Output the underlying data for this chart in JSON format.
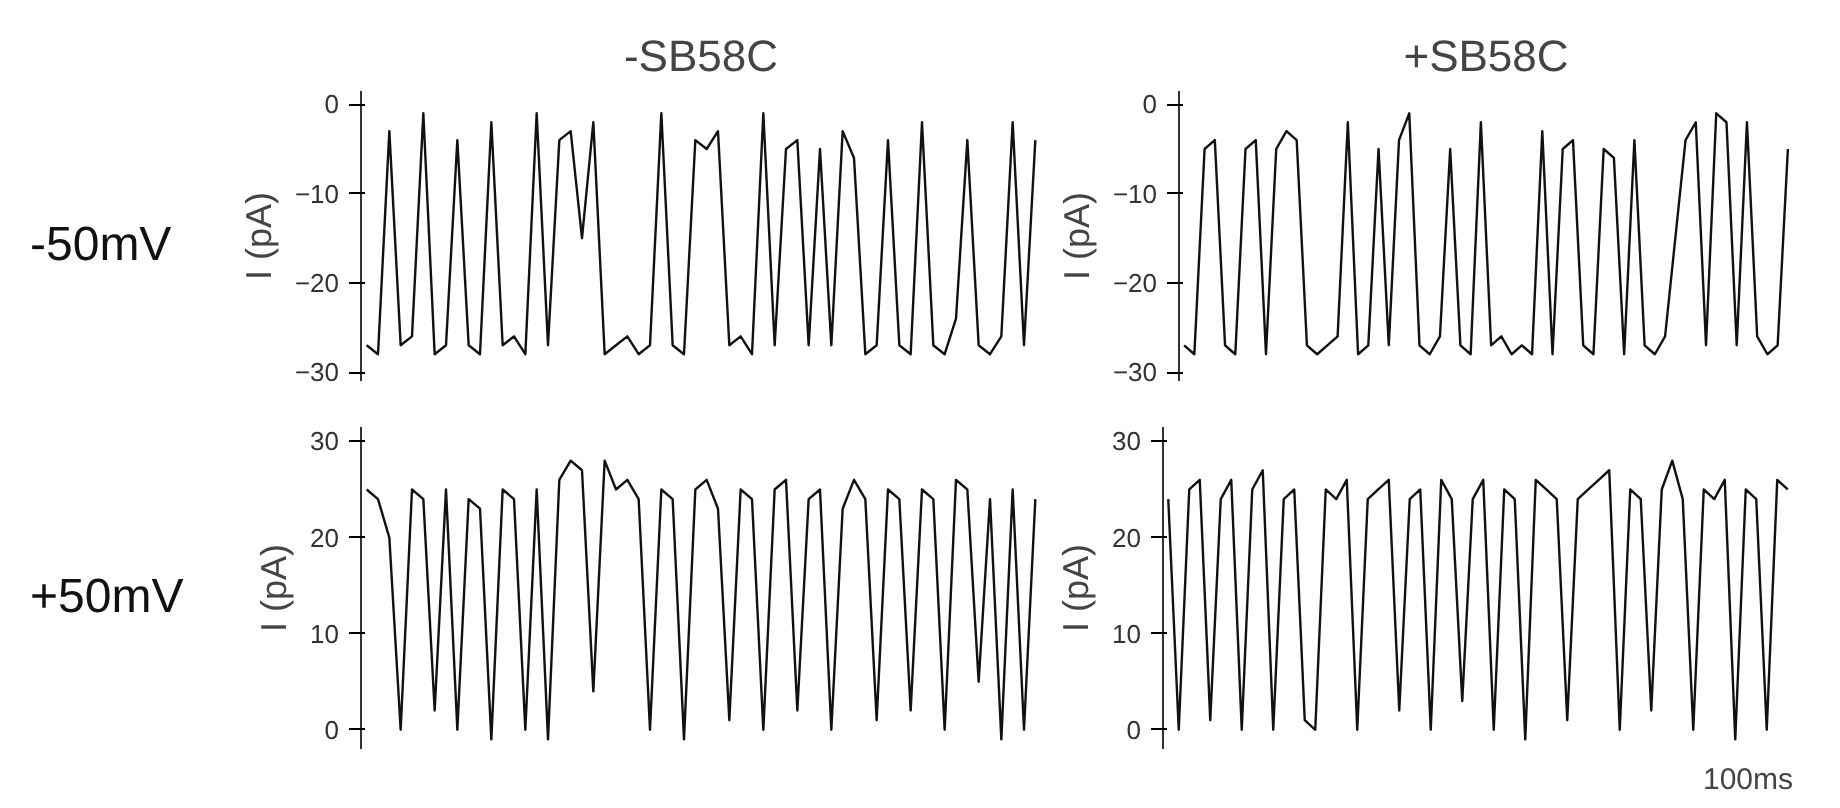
{
  "chart_data": [
    {
      "type": "line",
      "title": "-SB58C",
      "ylabel": "I (pA)",
      "annotations": [
        "-50mV"
      ],
      "tick_labels": "y",
      "color": "#111111",
      "ylim": [
        -31,
        1.5
      ],
      "yticks": [
        -30,
        -20,
        -10,
        0
      ],
      "categories": [
        null,
        null,
        null,
        null,
        null,
        null,
        null,
        null,
        null,
        null,
        null,
        null,
        null,
        null,
        null,
        null,
        null,
        null,
        null,
        null,
        null,
        null,
        null,
        null,
        null,
        null,
        null,
        null,
        null,
        null,
        null,
        null,
        null,
        null,
        null,
        null,
        null,
        null,
        null,
        null,
        null,
        null,
        null,
        null,
        null,
        null,
        null,
        null,
        null,
        null,
        null,
        null,
        null,
        null,
        null,
        null,
        null,
        null,
        null,
        null
      ],
      "values": [
        -27,
        -28,
        -3,
        -27,
        -26,
        -1,
        -28,
        -27,
        -4,
        -27,
        -28,
        -2,
        -27,
        -26,
        -28,
        -1,
        -27,
        -4,
        -3,
        -15,
        -2,
        -28,
        -27,
        -26,
        -28,
        -27,
        -1,
        -27,
        -28,
        -4,
        -5,
        -3,
        -27,
        -26,
        -28,
        -1,
        -27,
        -5,
        -4,
        -27,
        -5,
        -27,
        -3,
        -6,
        -28,
        -27,
        -4,
        -27,
        -28,
        -2,
        -27,
        -28,
        -24,
        -4,
        -27,
        -28,
        -26,
        -2,
        -27,
        -4
      ]
    },
    {
      "type": "line",
      "title": "+SB58C",
      "ylabel": "I (pA)",
      "tick_labels": "y",
      "color": "#111111",
      "ylim": [
        -31,
        1.5
      ],
      "yticks": [
        -30,
        -20,
        -10,
        0
      ],
      "categories": [
        null,
        null,
        null,
        null,
        null,
        null,
        null,
        null,
        null,
        null,
        null,
        null,
        null,
        null,
        null,
        null,
        null,
        null,
        null,
        null,
        null,
        null,
        null,
        null,
        null,
        null,
        null,
        null,
        null,
        null,
        null,
        null,
        null,
        null,
        null,
        null,
        null,
        null,
        null,
        null,
        null,
        null,
        null,
        null,
        null,
        null,
        null,
        null,
        null,
        null,
        null,
        null,
        null,
        null,
        null,
        null,
        null,
        null,
        null,
        null
      ],
      "values": [
        -27,
        -28,
        -5,
        -4,
        -27,
        -28,
        -5,
        -4,
        -28,
        -5,
        -3,
        -4,
        -27,
        -28,
        -27,
        -26,
        -2,
        -28,
        -27,
        -5,
        -27,
        -4,
        -1,
        -27,
        -28,
        -26,
        -5,
        -27,
        -28,
        -2,
        -27,
        -26,
        -28,
        -27,
        -28,
        -3,
        -28,
        -5,
        -4,
        -27,
        -28,
        -5,
        -6,
        -28,
        -4,
        -27,
        -28,
        -26,
        -15,
        -4,
        -2,
        -27,
        -1,
        -2,
        -27,
        -2,
        -26,
        -28,
        -27,
        -5
      ]
    },
    {
      "type": "line",
      "ylabel": "I (pA)",
      "annotations": [
        "+50mV"
      ],
      "tick_labels": "y",
      "color": "#111111",
      "ylim": [
        -2,
        31.5
      ],
      "yticks": [
        0,
        10,
        20,
        30
      ],
      "categories": [
        null,
        null,
        null,
        null,
        null,
        null,
        null,
        null,
        null,
        null,
        null,
        null,
        null,
        null,
        null,
        null,
        null,
        null,
        null,
        null,
        null,
        null,
        null,
        null,
        null,
        null,
        null,
        null,
        null,
        null,
        null,
        null,
        null,
        null,
        null,
        null,
        null,
        null,
        null,
        null,
        null,
        null,
        null,
        null,
        null,
        null,
        null,
        null,
        null,
        null,
        null,
        null,
        null,
        null,
        null,
        null,
        null,
        null,
        null,
        null
      ],
      "values": [
        25,
        24,
        20,
        0,
        25,
        24,
        2,
        25,
        0,
        24,
        23,
        -1,
        25,
        24,
        0,
        25,
        -1,
        26,
        28,
        27,
        4,
        28,
        25,
        26,
        24,
        0,
        25,
        24,
        -1,
        25,
        26,
        23,
        1,
        25,
        24,
        0,
        25,
        26,
        2,
        24,
        25,
        0,
        23,
        26,
        24,
        1,
        25,
        24,
        2,
        25,
        24,
        0,
        26,
        25,
        5,
        24,
        -1,
        25,
        0,
        24
      ]
    },
    {
      "type": "line",
      "ylabel": "I (pA)",
      "annotations": [
        "100ms"
      ],
      "tick_labels": "y",
      "color": "#111111",
      "ylim": [
        -2,
        31.5
      ],
      "yticks": [
        0,
        10,
        20,
        30
      ],
      "categories": [
        null,
        null,
        null,
        null,
        null,
        null,
        null,
        null,
        null,
        null,
        null,
        null,
        null,
        null,
        null,
        null,
        null,
        null,
        null,
        null,
        null,
        null,
        null,
        null,
        null,
        null,
        null,
        null,
        null,
        null,
        null,
        null,
        null,
        null,
        null,
        null,
        null,
        null,
        null,
        null,
        null,
        null,
        null,
        null,
        null,
        null,
        null,
        null,
        null,
        null,
        null,
        null,
        null,
        null,
        null,
        null,
        null,
        null,
        null,
        null
      ],
      "values": [
        24,
        0,
        25,
        26,
        1,
        24,
        26,
        0,
        25,
        27,
        0,
        24,
        25,
        1,
        0,
        25,
        24,
        26,
        0,
        24,
        25,
        26,
        2,
        24,
        25,
        0,
        26,
        24,
        3,
        24,
        26,
        0,
        25,
        24,
        -1,
        26,
        25,
        24,
        1,
        24,
        25,
        26,
        27,
        0,
        25,
        24,
        2,
        25,
        28,
        24,
        0,
        25,
        24,
        26,
        -1,
        25,
        24,
        0,
        26,
        25
      ]
    }
  ]
}
